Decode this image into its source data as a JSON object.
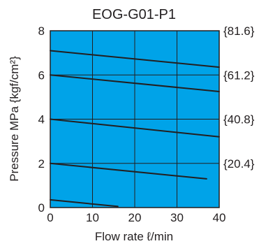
{
  "chart_data": {
    "type": "line",
    "title": "EOG-G01-P1",
    "xlabel": "Flow rate ℓ/min",
    "ylabel": "Pressure MPa {kgf/cm²}",
    "xlim": [
      0,
      40
    ],
    "ylim": [
      0,
      8
    ],
    "x_ticks": [
      "0",
      "10",
      "20",
      "30",
      "40"
    ],
    "y_ticks": [
      "0",
      "2",
      "4",
      "6",
      "8"
    ],
    "y2_ticks": [
      {
        "y": 2,
        "label": "{20.4}"
      },
      {
        "y": 4,
        "label": "{40.8}"
      },
      {
        "y": 6,
        "label": "{61.2}"
      },
      {
        "y": 8,
        "label": "{81.6}"
      }
    ],
    "grid": true,
    "background_color": "#00a3e8",
    "line_color": "#231f20",
    "series": [
      {
        "x": [
          0,
          16
        ],
        "y": [
          0.35,
          0.05
        ]
      },
      {
        "x": [
          0,
          37
        ],
        "y": [
          2.0,
          1.3
        ]
      },
      {
        "x": [
          0,
          40
        ],
        "y": [
          4.0,
          3.2
        ]
      },
      {
        "x": [
          0,
          40
        ],
        "y": [
          6.0,
          5.25
        ]
      },
      {
        "x": [
          0,
          40
        ],
        "y": [
          7.1,
          6.35
        ]
      }
    ]
  }
}
